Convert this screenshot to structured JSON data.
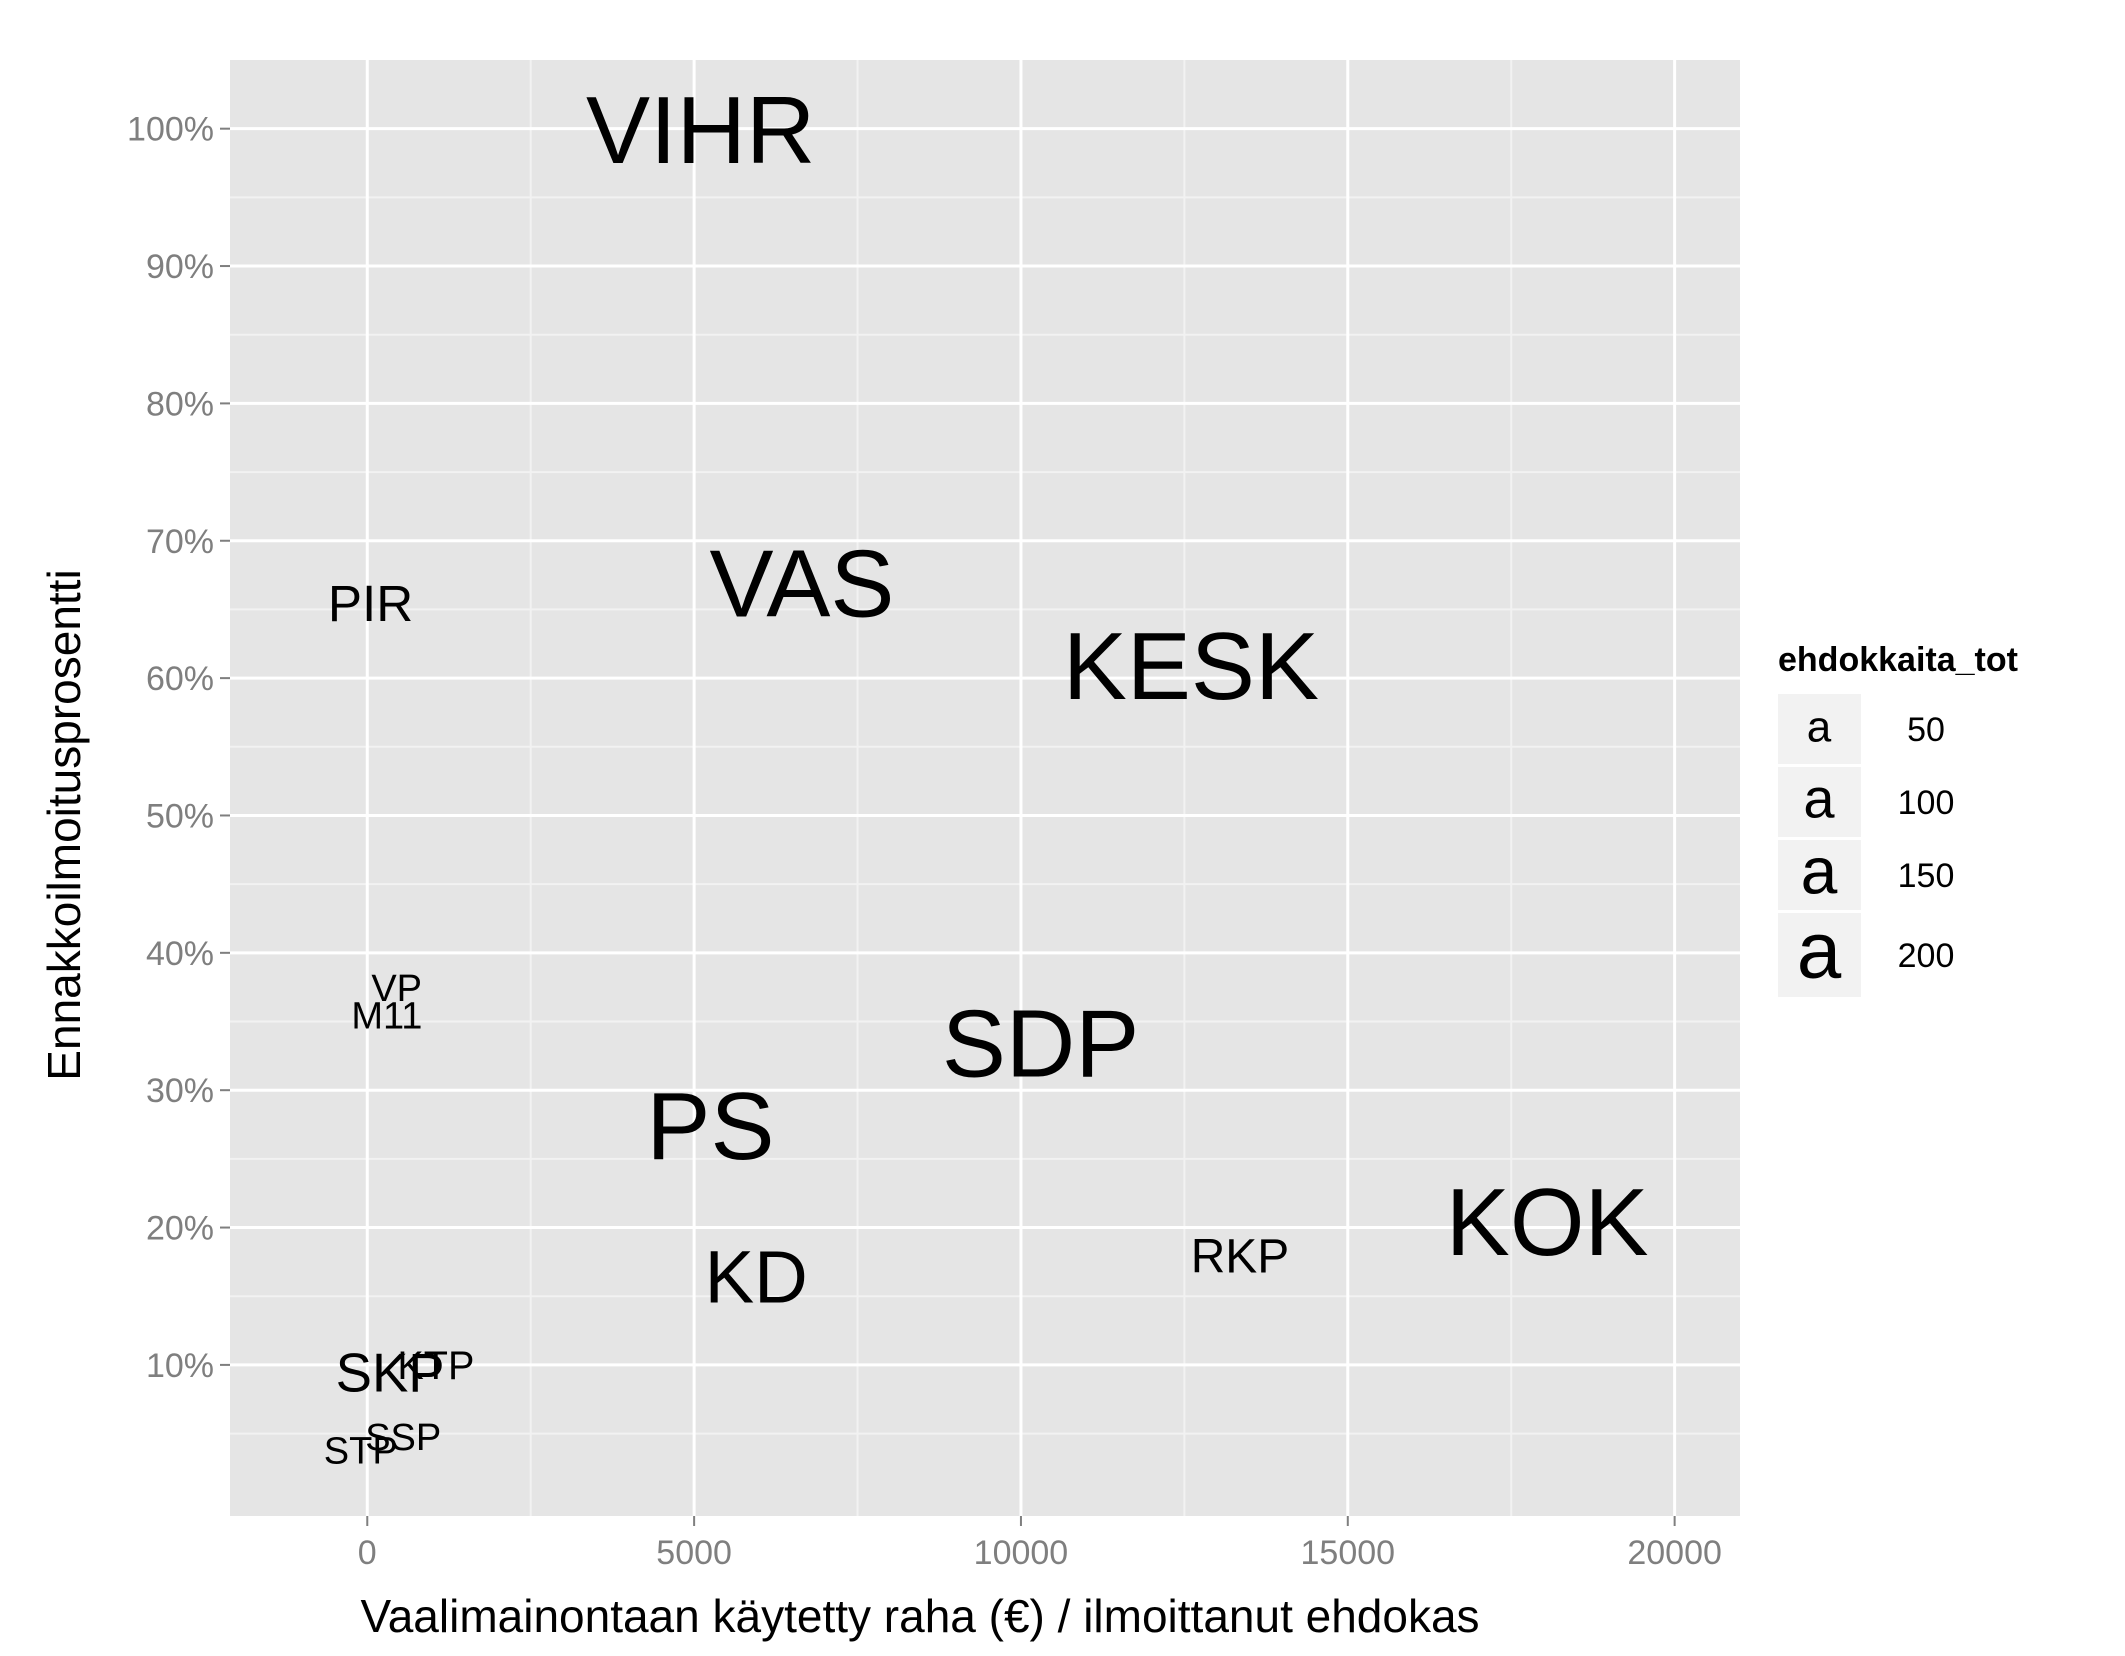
{
  "chart_data": {
    "type": "scatter",
    "title": "",
    "xlabel": "Vaalimainontaan käytetty raha (€) / ilmoittanut ehdokas",
    "ylabel": "Ennakkoilmoitusprosentti",
    "xlim": [
      -2100,
      21000
    ],
    "ylim": [
      -0.01,
      1.05
    ],
    "x_ticks": [
      0,
      5000,
      10000,
      15000,
      20000
    ],
    "x_tick_labels": [
      "0",
      "5000",
      "10000",
      "15000",
      "20000"
    ],
    "y_ticks": [
      0.1,
      0.2,
      0.3,
      0.4,
      0.5,
      0.6,
      0.7,
      0.8,
      0.9,
      1.0
    ],
    "y_tick_labels": [
      "10%",
      "20%",
      "30%",
      "40%",
      "50%",
      "60%",
      "70%",
      "80%",
      "90%",
      "100%"
    ],
    "grid": true,
    "legend_position": "right",
    "legend": {
      "title": "ehdokkaita_tot",
      "glyph": "a",
      "entries": [
        {
          "label": "50",
          "value": 50
        },
        {
          "label": "100",
          "value": 100
        },
        {
          "label": "150",
          "value": 150
        },
        {
          "label": "200",
          "value": 200
        }
      ]
    },
    "points": [
      {
        "label": "VIHR",
        "x": 5100,
        "y": 1.0,
        "size": 216
      },
      {
        "label": "VAS",
        "x": 6650,
        "y": 0.67,
        "size": 216
      },
      {
        "label": "PIR",
        "x": 50,
        "y": 0.655,
        "size": 80
      },
      {
        "label": "KESK",
        "x": 12600,
        "y": 0.61,
        "size": 216
      },
      {
        "label": "VP",
        "x": 450,
        "y": 0.375,
        "size": 40
      },
      {
        "label": "M11",
        "x": 300,
        "y": 0.355,
        "size": 40
      },
      {
        "label": "SDP",
        "x": 10300,
        "y": 0.335,
        "size": 216
      },
      {
        "label": "PS",
        "x": 5250,
        "y": 0.275,
        "size": 216
      },
      {
        "label": "KOK",
        "x": 18050,
        "y": 0.205,
        "size": 216
      },
      {
        "label": "RKP",
        "x": 13350,
        "y": 0.18,
        "size": 70
      },
      {
        "label": "KD",
        "x": 5950,
        "y": 0.165,
        "size": 150
      },
      {
        "label": "SKP",
        "x": 350,
        "y": 0.095,
        "size": 90
      },
      {
        "label": "KTP",
        "x": 1050,
        "y": 0.1,
        "size": 45
      },
      {
        "label": "SSP",
        "x": 550,
        "y": 0.048,
        "size": 40
      },
      {
        "label": "STP",
        "x": -100,
        "y": 0.038,
        "size": 40
      }
    ]
  }
}
